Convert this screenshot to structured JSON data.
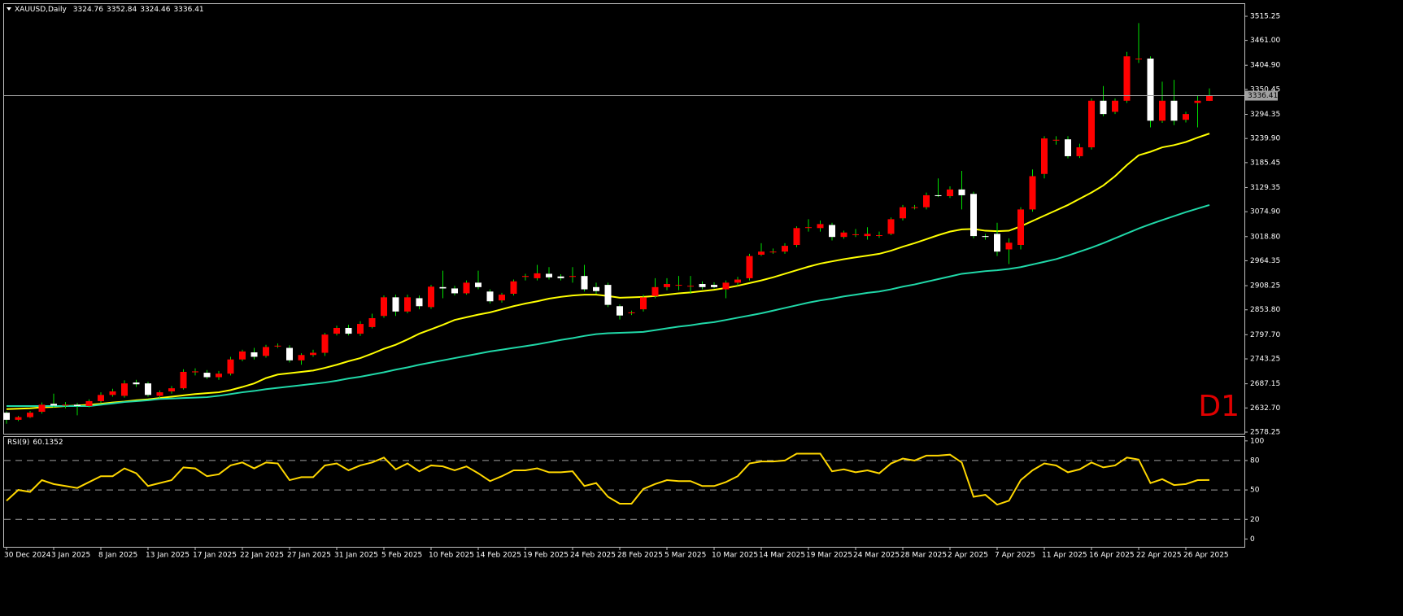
{
  "chart_data": [
    {
      "type": "candlestick",
      "title": "XAUUSD,Daily",
      "watermark": "D1",
      "bull_color": "#ff0000",
      "bear_color": "#ffffff",
      "wick_color": "#00e000",
      "categories": [
        "30 Dec 2024",
        null,
        null,
        null,
        "3 Jan 2025",
        null,
        null,
        null,
        "8 Jan 2025",
        null,
        null,
        null,
        "13 Jan 2025",
        null,
        null,
        null,
        "17 Jan 2025",
        null,
        null,
        null,
        "22 Jan 2025",
        null,
        null,
        null,
        "27 Jan 2025",
        null,
        null,
        null,
        "31 Jan 2025",
        null,
        null,
        null,
        "5 Feb 2025",
        null,
        null,
        null,
        "10 Feb 2025",
        null,
        null,
        null,
        "14 Feb 2025",
        null,
        null,
        null,
        "19 Feb 2025",
        null,
        null,
        null,
        "24 Feb 2025",
        null,
        null,
        null,
        "28 Feb 2025",
        null,
        null,
        null,
        "5 Mar 2025",
        null,
        null,
        null,
        "10 Mar 2025",
        null,
        null,
        null,
        "14 Mar 2025",
        null,
        null,
        null,
        "19 Mar 2025",
        null,
        null,
        null,
        "24 Mar 2025",
        null,
        null,
        null,
        "28 Mar 2025",
        null,
        null,
        null,
        "2 Apr 2025",
        null,
        null,
        null,
        "7 Apr 2025",
        null,
        null,
        null,
        "11 Apr 2025",
        null,
        null,
        null,
        "16 Apr 2025",
        null,
        null,
        null,
        "22 Apr 2025",
        null,
        null,
        null,
        "26 Apr 2025",
        null,
        null
      ],
      "open": [
        2622,
        2606,
        2612,
        2624,
        2642,
        2638,
        2640,
        2637,
        2648,
        2662,
        2660,
        2690,
        2688,
        2660,
        2670,
        2677,
        2713,
        2712,
        2702,
        2710,
        2742,
        2758,
        2750,
        2772,
        2768,
        2740,
        2752,
        2757,
        2800,
        2813,
        2800,
        2815,
        2840,
        2882,
        2850,
        2880,
        2860,
        2905,
        2902,
        2891,
        2915,
        2895,
        2875,
        2890,
        2928,
        2925,
        2935,
        2929,
        2928,
        2930,
        2905,
        2910,
        2862,
        2846,
        2855,
        2885,
        2905,
        2910,
        2908,
        2912,
        2910,
        2900,
        2915,
        2925,
        2978,
        2985,
        2985,
        3000,
        3040,
        3038,
        3045,
        3018,
        3024,
        3020,
        3022,
        3025,
        3060,
        3085,
        3085,
        3112,
        3110,
        3125,
        3115,
        3020,
        3025,
        2990,
        3000,
        3080,
        3160,
        3237,
        3238,
        3200,
        3220,
        3325,
        3300,
        3325,
        3420,
        3420,
        3280,
        3325,
        3282,
        3320,
        3324.76
      ],
      "high": [
        2625,
        2615,
        2626,
        2645,
        2665,
        2646,
        2644,
        2652,
        2668,
        2676,
        2695,
        2696,
        2692,
        2672,
        2682,
        2720,
        2722,
        2718,
        2716,
        2748,
        2764,
        2768,
        2775,
        2778,
        2774,
        2756,
        2764,
        2802,
        2818,
        2820,
        2828,
        2845,
        2886,
        2888,
        2888,
        2886,
        2910,
        2942,
        2908,
        2920,
        2942,
        2900,
        2892,
        2922,
        2935,
        2955,
        2950,
        2934,
        2950,
        2955,
        2915,
        2915,
        2866,
        2852,
        2888,
        2925,
        2925,
        2930,
        2930,
        2918,
        2916,
        2920,
        2928,
        2980,
        3004,
        2992,
        3004,
        3042,
        3058,
        3055,
        3050,
        3032,
        3036,
        3040,
        3030,
        3062,
        3090,
        3090,
        3118,
        3150,
        3132,
        3167,
        3120,
        3025,
        3050,
        3015,
        3085,
        3170,
        3245,
        3245,
        3245,
        3228,
        3330,
        3358,
        3330,
        3435,
        3500,
        3425,
        3368,
        3372,
        3300,
        3336,
        3352.84
      ],
      "low": [
        2597,
        2603,
        2610,
        2620,
        2633,
        2632,
        2616,
        2634,
        2644,
        2658,
        2656,
        2680,
        2658,
        2655,
        2665,
        2674,
        2706,
        2698,
        2696,
        2706,
        2738,
        2742,
        2746,
        2768,
        2735,
        2730,
        2748,
        2750,
        2796,
        2796,
        2795,
        2812,
        2836,
        2840,
        2846,
        2855,
        2856,
        2880,
        2886,
        2888,
        2900,
        2868,
        2870,
        2886,
        2920,
        2920,
        2922,
        2920,
        2915,
        2895,
        2890,
        2860,
        2832,
        2842,
        2850,
        2880,
        2898,
        2898,
        2890,
        2900,
        2902,
        2880,
        2908,
        2920,
        2975,
        2980,
        2980,
        2995,
        3030,
        3030,
        3010,
        3014,
        3018,
        3012,
        3016,
        3022,
        3055,
        3080,
        3080,
        3108,
        3106,
        3080,
        3015,
        3012,
        2975,
        2957,
        2990,
        3075,
        3150,
        3226,
        3195,
        3196,
        3215,
        3290,
        3295,
        3320,
        3410,
        3265,
        3275,
        3270,
        3276,
        3265,
        3324.46
      ],
      "close": [
        2606,
        2612,
        2622,
        2640,
        2638,
        2640,
        2637,
        2648,
        2662,
        2670,
        2688,
        2686,
        2662,
        2668,
        2677,
        2714,
        2715,
        2702,
        2710,
        2742,
        2760,
        2748,
        2770,
        2773,
        2740,
        2752,
        2757,
        2798,
        2813,
        2800,
        2822,
        2835,
        2882,
        2850,
        2882,
        2862,
        2906,
        2902,
        2891,
        2915,
        2905,
        2873,
        2888,
        2918,
        2930,
        2936,
        2927,
        2925,
        2930,
        2900,
        2896,
        2865,
        2841,
        2848,
        2882,
        2905,
        2912,
        2910,
        2908,
        2905,
        2905,
        2915,
        2922,
        2975,
        2985,
        2985,
        2998,
        3038,
        3040,
        3047,
        3018,
        3028,
        3024,
        3025,
        3022,
        3058,
        3085,
        3085,
        3112,
        3110,
        3125,
        3112,
        3020,
        3018,
        2985,
        3005,
        3080,
        3155,
        3240,
        3237,
        3200,
        3220,
        3325,
        3295,
        3325,
        3425,
        3420,
        3280,
        3325,
        3280,
        3295,
        3325,
        3336.41
      ],
      "series": [
        {
          "color": "#ffff00",
          "values": [
            2630,
            2631,
            2632,
            2634,
            2635,
            2637,
            2638,
            2640,
            2642,
            2645,
            2647,
            2650,
            2652,
            2655,
            2658,
            2661,
            2664,
            2666,
            2668,
            2673,
            2680,
            2688,
            2700,
            2708,
            2711,
            2714,
            2717,
            2723,
            2730,
            2738,
            2745,
            2755,
            2766,
            2775,
            2787,
            2800,
            2810,
            2820,
            2831,
            2837,
            2843,
            2848,
            2855,
            2862,
            2868,
            2873,
            2879,
            2883,
            2886,
            2888,
            2888,
            2885,
            2881,
            2882,
            2883,
            2885,
            2888,
            2891,
            2893,
            2896,
            2899,
            2903,
            2908,
            2914,
            2920,
            2927,
            2935,
            2943,
            2951,
            2958,
            2963,
            2968,
            2972,
            2976,
            2980,
            2987,
            2996,
            3004,
            3013,
            3022,
            3030,
            3035,
            3036,
            3032,
            3031,
            3032,
            3042,
            3054,
            3066,
            3078,
            3090,
            3104,
            3118,
            3134,
            3155,
            3180,
            3202,
            3210,
            3220,
            3225,
            3232,
            3242,
            3251
          ]
        },
        {
          "color": "#20d8a8",
          "values": [
            2637,
            2637,
            2637,
            2637,
            2637,
            2637,
            2637,
            2637,
            2640,
            2643,
            2646,
            2648,
            2650,
            2653,
            2654,
            2655,
            2656,
            2657,
            2660,
            2664,
            2668,
            2671,
            2675,
            2678,
            2681,
            2684,
            2687,
            2690,
            2694,
            2699,
            2703,
            2708,
            2713,
            2719,
            2724,
            2730,
            2735,
            2740,
            2745,
            2750,
            2755,
            2760,
            2764,
            2768,
            2772,
            2776,
            2781,
            2786,
            2790,
            2795,
            2799,
            2801,
            2802,
            2803,
            2804,
            2808,
            2812,
            2816,
            2819,
            2823,
            2826,
            2831,
            2836,
            2841,
            2846,
            2852,
            2858,
            2864,
            2870,
            2875,
            2879,
            2884,
            2888,
            2892,
            2895,
            2900,
            2906,
            2911,
            2917,
            2923,
            2929,
            2935,
            2938,
            2941,
            2943,
            2946,
            2950,
            2956,
            2962,
            2968,
            2976,
            2985,
            2994,
            3004,
            3015,
            3026,
            3037,
            3047,
            3056,
            3065,
            3074,
            3082,
            3090
          ]
        }
      ],
      "ylim": [
        2574.6,
        3542.8
      ],
      "yticks": [
        3515.25,
        {
          "value": 3461,
          "label": "3461.00"
        },
        {
          "value": 3404.9,
          "label": "3404.90"
        },
        3350.45,
        3294.35,
        {
          "value": 3239.9,
          "label": "3239.90"
        },
        3185.45,
        3129.35,
        {
          "value": 3074.9,
          "label": "3074.90"
        },
        {
          "value": 3018.8,
          "label": "3018.80"
        },
        2964.35,
        2908.25,
        {
          "value": 2853.8,
          "label": "2853.80"
        },
        {
          "value": 2797.7,
          "label": "2797.70"
        },
        2743.25,
        2687.15,
        {
          "value": 2632.7,
          "label": "2632.70"
        },
        2578.25
      ]
    },
    {
      "type": "line",
      "title": "RSI(9)",
      "color": "#ffd700",
      "values": [
        39,
        50,
        48,
        60,
        56,
        54,
        52,
        58,
        64,
        64,
        72,
        67,
        54,
        57,
        60,
        73,
        72,
        64,
        66,
        75,
        78,
        72,
        78,
        77,
        60,
        63,
        63,
        75,
        77,
        70,
        75,
        78,
        83,
        71,
        77,
        69,
        75,
        74,
        70,
        74,
        67,
        59,
        64,
        70,
        70,
        72,
        68,
        68,
        69,
        54,
        57,
        43,
        36,
        36,
        51,
        56,
        60,
        59,
        59,
        54,
        54,
        58,
        64,
        77,
        79,
        79,
        80,
        87,
        87,
        87,
        69,
        71,
        68,
        70,
        67,
        77,
        82,
        80,
        85,
        85,
        86,
        78,
        43,
        45,
        35,
        39,
        60,
        70,
        77,
        75,
        68,
        71,
        78,
        73,
        75,
        83,
        81,
        57,
        61,
        55,
        56,
        60,
        60.1352
      ],
      "ylim": [
        -8,
        104
      ],
      "yticks": [
        100,
        80,
        50,
        20,
        0
      ],
      "levels": [
        80,
        50,
        20
      ]
    }
  ]
}
